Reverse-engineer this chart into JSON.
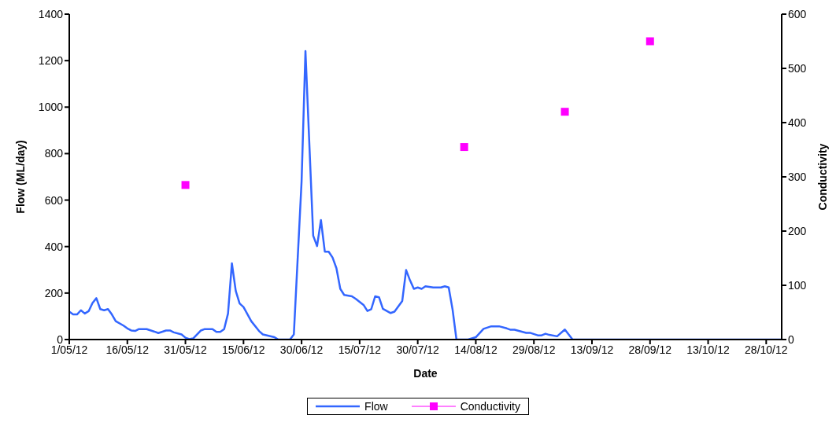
{
  "chart_data": {
    "type": "line",
    "xlabel": "Date",
    "ylabel": "Flow (ML/day)",
    "y2label": "Conductivity",
    "xlim": [
      "--05-01",
      "--11-01"
    ],
    "xticks": [
      {
        "value": "--05-01",
        "label": "1/05/12"
      },
      {
        "value": "--05-16",
        "label": "16/05/12"
      },
      {
        "value": "--05-31",
        "label": "31/05/12"
      },
      {
        "value": "--06-15",
        "label": "15/06/12"
      },
      {
        "value": "--06-30",
        "label": "30/06/12"
      },
      {
        "value": "--07-15",
        "label": "15/07/12"
      },
      {
        "value": "--07-30",
        "label": "30/07/12"
      },
      {
        "value": "--08-14",
        "label": "14/08/12"
      },
      {
        "value": "--08-29",
        "label": "29/08/12"
      },
      {
        "value": "--09-13",
        "label": "13/09/12"
      },
      {
        "value": "--09-28",
        "label": "28/09/12"
      },
      {
        "value": "--10-13",
        "label": "13/10/12"
      },
      {
        "value": "--10-28",
        "label": "28/10/12"
      }
    ],
    "ylim": [
      0,
      1400
    ],
    "yticks": [
      0,
      200,
      400,
      600,
      800,
      1000,
      1200,
      1400
    ],
    "y2lim": [
      0,
      600
    ],
    "y2ticks": [
      0,
      100,
      200,
      300,
      400,
      500,
      600
    ],
    "legend": "bottom",
    "series": [
      {
        "name": "Flow",
        "color": "#3366ff",
        "marker": "none",
        "x": [
          "--05-01",
          "--05-02",
          "--05-03",
          "--05-04",
          "--05-05",
          "--05-06",
          "--05-07",
          "--05-08",
          "--05-09",
          "--05-10",
          "--05-11",
          "--05-12",
          "--05-13",
          "--05-15",
          "--05-16",
          "--05-17",
          "--05-18",
          "--05-19",
          "--05-21",
          "--05-23",
          "--05-24",
          "--05-26",
          "--05-27",
          "--05-28",
          "--05-30",
          "--05-31",
          "--06-01",
          "--06-02",
          "--06-04",
          "--06-05",
          "--06-07",
          "--06-08",
          "--06-09",
          "--06-10",
          "--06-11",
          "--06-12",
          "--06-13",
          "--06-14",
          "--06-15",
          "--06-17",
          "--06-19",
          "--06-20",
          "--06-23",
          "--06-24",
          "--06-27",
          "--06-28",
          "--06-30",
          "--07-01",
          "--07-03",
          "--07-04",
          "--07-05",
          "--07-06",
          "--07-07",
          "--07-08",
          "--07-09",
          "--07-10",
          "--07-11",
          "--07-13",
          "--07-14",
          "--07-16",
          "--07-17",
          "--07-18",
          "--07-19",
          "--07-20",
          "--07-21",
          "--07-23",
          "--07-24",
          "--07-26",
          "--07-27",
          "--07-28",
          "--07-29",
          "--07-30",
          "--07-31",
          "--08-01",
          "--08-03",
          "--08-05",
          "--08-06",
          "--08-07",
          "--08-08",
          "--08-09",
          "--08-12",
          "--08-14",
          "--08-16",
          "--08-18",
          "--08-20",
          "--08-22",
          "--08-23",
          "--08-24",
          "--08-27",
          "--08-28",
          "--08-30",
          "--08-31",
          "--09-01",
          "--09-02",
          "--09-04",
          "--09-06",
          "--09-08",
          "--11-01"
        ],
        "values": [
          120,
          108,
          108,
          126,
          112,
          122,
          157,
          178,
          131,
          126,
          131,
          108,
          79,
          60,
          48,
          39,
          37,
          45,
          45,
          34,
          28,
          39,
          39,
          31,
          22,
          8,
          2,
          5,
          39,
          45,
          45,
          33,
          33,
          45,
          112,
          328,
          209,
          155,
          140,
          79,
          37,
          22,
          10,
          0,
          0,
          22,
          680,
          1241,
          447,
          402,
          514,
          378,
          378,
          353,
          307,
          218,
          192,
          186,
          175,
          149,
          123,
          131,
          186,
          182,
          132,
          114,
          120,
          166,
          299,
          255,
          218,
          224,
          218,
          229,
          224,
          224,
          229,
          224,
          129,
          0,
          0,
          10,
          46,
          57,
          57,
          48,
          42,
          42,
          29,
          29,
          18,
          18,
          25,
          20,
          14,
          43,
          0,
          0
        ]
      },
      {
        "name": "Conductivity",
        "type": "scatter",
        "axis": "y2",
        "color": "#ff00ff",
        "marker": "square",
        "x": [
          "--05-31",
          "--08-11",
          "--09-06",
          "--09-28"
        ],
        "values": [
          285,
          355,
          420,
          550
        ]
      }
    ]
  }
}
